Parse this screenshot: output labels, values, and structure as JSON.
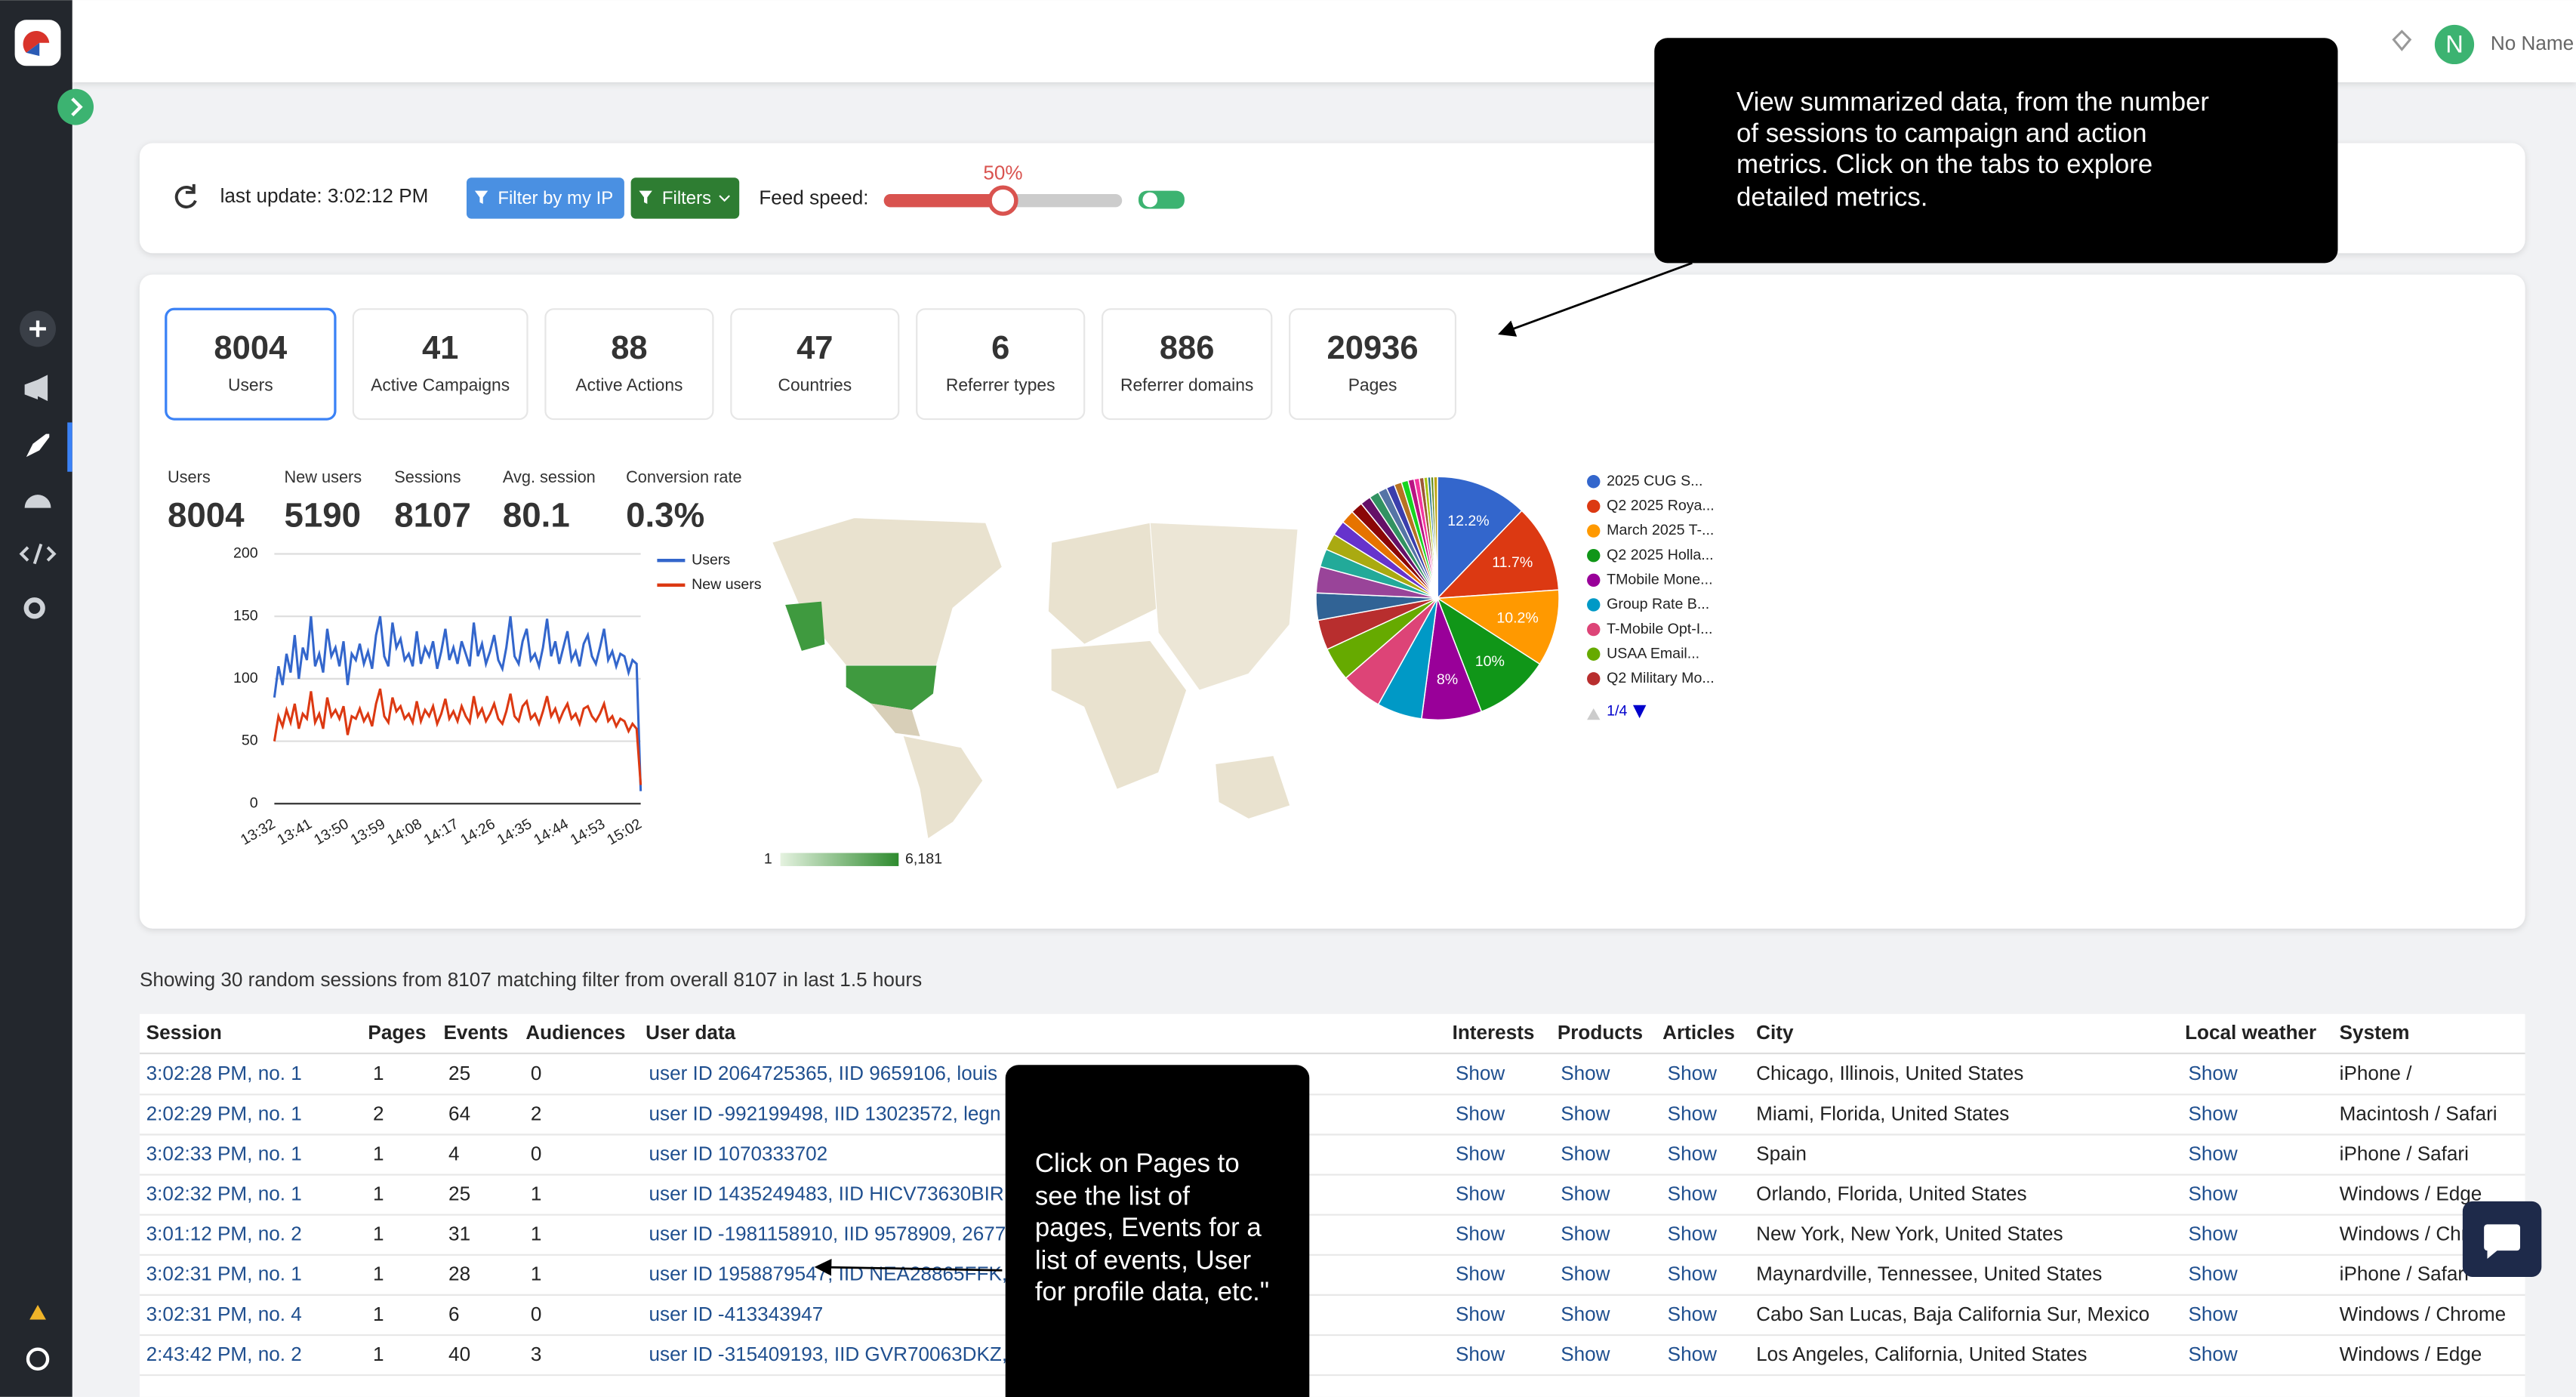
{
  "header": {
    "avatar": "N",
    "user_name": "No Name"
  },
  "toolbar": {
    "last_update": "last update: 3:02:12 PM",
    "filter_ip": "Filter by my IP",
    "filters": "Filters",
    "feed_speed_label": "Feed speed:",
    "feed_speed": {
      "value": 50,
      "label": "50%"
    }
  },
  "stats": [
    {
      "value": 8004,
      "label": "Users"
    },
    {
      "value": 41,
      "label": "Active Campaigns"
    },
    {
      "value": 88,
      "label": "Active Actions"
    },
    {
      "value": 47,
      "label": "Countries"
    },
    {
      "value": 6,
      "label": "Referrer types"
    },
    {
      "value": 886,
      "label": "Referrer domains"
    },
    {
      "value": 20936,
      "label": "Pages"
    }
  ],
  "metrics": [
    {
      "label": "Users",
      "value": 8004
    },
    {
      "label": "New users",
      "value": 5190
    },
    {
      "label": "Sessions",
      "value": 8107
    },
    {
      "label": "Avg. session",
      "value": 80.1
    },
    {
      "label": "Conversion rate",
      "value": "0.3%"
    }
  ],
  "chart_data": [
    {
      "type": "line",
      "categories": [
        "13:32",
        null,
        null,
        null,
        null,
        null,
        null,
        null,
        null,
        "13:41",
        null,
        null,
        null,
        null,
        null,
        null,
        null,
        null,
        "13:50",
        null,
        null,
        null,
        null,
        null,
        null,
        null,
        null,
        "13:59",
        null,
        null,
        null,
        null,
        null,
        null,
        null,
        null,
        "14:08",
        null,
        null,
        null,
        null,
        null,
        null,
        null,
        null,
        "14:17",
        null,
        null,
        null,
        null,
        null,
        null,
        null,
        null,
        "14:26",
        null,
        null,
        null,
        null,
        null,
        null,
        null,
        null,
        "14:35",
        null,
        null,
        null,
        null,
        null,
        null,
        null,
        null,
        "14:44",
        null,
        null,
        null,
        null,
        null,
        null,
        null,
        null,
        "14:53",
        null,
        null,
        null,
        null,
        null,
        null,
        null,
        null,
        "15:02"
      ],
      "series": [
        {
          "name": "Users",
          "color": "#3366cc",
          "values": [
            85,
            110,
            95,
            120,
            105,
            135,
            100,
            125,
            115,
            150,
            110,
            120,
            105,
            140,
            118,
            125,
            110,
            130,
            95,
            120,
            115,
            128,
            112,
            122,
            108,
            135,
            150,
            118,
            110,
            145,
            125,
            132,
            115,
            120,
            110,
            138,
            112,
            125,
            118,
            130,
            108,
            122,
            140,
            115,
            125,
            112,
            130,
            120,
            110,
            145,
            118,
            128,
            112,
            122,
            135,
            115,
            108,
            125,
            150,
            118,
            112,
            130,
            140,
            115,
            120,
            110,
            125,
            148,
            118,
            130,
            112,
            125,
            138,
            115,
            122,
            110,
            128,
            135,
            118,
            112,
            125,
            140,
            115,
            122,
            110,
            120,
            118,
            105,
            115,
            112,
            10
          ]
        },
        {
          "name": "New users",
          "color": "#dc3912",
          "values": [
            50,
            70,
            62,
            75,
            65,
            80,
            60,
            72,
            68,
            90,
            65,
            72,
            60,
            85,
            70,
            75,
            68,
            78,
            55,
            70,
            68,
            76,
            66,
            72,
            62,
            80,
            92,
            70,
            65,
            85,
            74,
            78,
            68,
            72,
            65,
            82,
            66,
            75,
            70,
            78,
            64,
            72,
            84,
            68,
            74,
            66,
            78,
            70,
            65,
            86,
            70,
            76,
            66,
            72,
            80,
            68,
            64,
            74,
            88,
            70,
            66,
            78,
            82,
            68,
            72,
            64,
            74,
            86,
            70,
            76,
            66,
            74,
            80,
            68,
            72,
            64,
            76,
            78,
            70,
            66,
            72,
            80,
            66,
            70,
            62,
            68,
            66,
            58,
            64,
            60,
            15
          ]
        }
      ],
      "ylim": [
        0,
        200
      ],
      "yticks": [
        0,
        50,
        100,
        150,
        200
      ],
      "grid": true
    },
    {
      "type": "pie",
      "categories": [
        "2025 CUG S...",
        "Q2 2025 Roya...",
        "March 2025 T-...",
        "Q2 2025 Holla...",
        "TMobile Mone...",
        "Group Rate B...",
        "T-Mobile Opt-I...",
        "USAA Email...",
        "Q2 Military Mo...",
        null,
        null,
        null,
        null,
        null,
        null,
        null,
        null,
        null,
        null,
        null,
        null,
        null,
        null,
        null,
        null,
        null,
        null,
        null,
        null
      ],
      "values": [
        12.2,
        11.7,
        10.2,
        10,
        8,
        6,
        5.5,
        4.5,
        4,
        3.6,
        3.5,
        2.4,
        2.2,
        2,
        1.8,
        1.6,
        1.4,
        1.3,
        1.2,
        1.1,
        1,
        0.9,
        0.8,
        0.7,
        0.6,
        0.5,
        0.4,
        0.4,
        0.5
      ],
      "value_labels": [
        "12.2%",
        "11.7%",
        "10.2%",
        "10%",
        "8%",
        null,
        null,
        null,
        null,
        null,
        null,
        null,
        null,
        null,
        null,
        null,
        null,
        null,
        null,
        null,
        null,
        null,
        null,
        null,
        null,
        null,
        null,
        null,
        null
      ],
      "colors": [
        "#3366cc",
        "#dc3912",
        "#ff9900",
        "#109618",
        "#990099",
        "#0099c6",
        "#dd4477",
        "#66aa00",
        "#b82e2e",
        "#316395",
        "#994499",
        "#22aa99",
        "#aaaa11",
        "#6633cc",
        "#e67300",
        "#8b0707",
        "#651067",
        "#329262",
        "#5574a6",
        "#3b3eac",
        "#b77322",
        "#16d620",
        "#b91383",
        "#f4359e",
        "#9c5935",
        "#a9c413",
        "#2a778d",
        "#668d1c",
        "#bea413"
      ],
      "legend_page": "1/4"
    }
  ],
  "map": {
    "legend_min": "1",
    "legend_max": "6,181"
  },
  "table": {
    "caption": "Showing 30 random sessions from 8107 matching filter from overall 8107 in last 1.5 hours",
    "columns": [
      "Session",
      "Pages",
      "Events",
      "Audiences",
      "User data",
      "Interests",
      "Products",
      "Articles",
      "City",
      "Local weather",
      "System"
    ],
    "rows": [
      [
        "3:02:28 PM, no. 1",
        "1",
        "25",
        "0",
        "user ID 2064725365, IID 9659106, louis",
        "Show",
        "Show",
        "Show",
        "Chicago, Illinois, United States",
        "Show",
        "iPhone /"
      ],
      [
        "2:02:29 PM, no. 1",
        "2",
        "64",
        "2",
        "user ID -992199498, IID 13023572, legn",
        "Show",
        "Show",
        "Show",
        "Miami, Florida, United States",
        "Show",
        "Macintosh / Safari"
      ],
      [
        "3:02:33 PM, no. 1",
        "1",
        "4",
        "0",
        "user ID 1070333702",
        "Show",
        "Show",
        "Show",
        "Spain",
        "Show",
        "iPhone / Safari"
      ],
      [
        "3:02:32 PM, no. 1",
        "1",
        "25",
        "1",
        "user ID 1435249483, IID HICV73630BIR,",
        "Show",
        "Show",
        "Show",
        "Orlando, Florida, United States",
        "Show",
        "Windows / Edge"
      ],
      [
        "3:01:12 PM, no. 2",
        "1",
        "31",
        "1",
        "user ID -1981158910, IID 9578909, 2677",
        "Show",
        "Show",
        "Show",
        "New York, New York, United States",
        "Show",
        "Windows / Chrome"
      ],
      [
        "3:02:31 PM, no. 1",
        "1",
        "28",
        "1",
        "user ID 1958879547, IID NEA28865FFK,",
        "Show",
        "Show",
        "Show",
        "Maynardville, Tennessee, United States",
        "Show",
        "iPhone / Safari"
      ],
      [
        "3:02:31 PM, no. 4",
        "1",
        "6",
        "0",
        "user ID -413343947",
        "Show",
        "Show",
        "Show",
        "Cabo San Lucas, Baja California Sur, Mexico",
        "Show",
        "Windows / Chrome"
      ],
      [
        "2:43:42 PM, no. 2",
        "1",
        "40",
        "3",
        "user ID -315409193, IID GVR70063DKZ,",
        "Show",
        "Show",
        "Show",
        "Los Angeles, California, United States",
        "Show",
        "Windows / Edge"
      ]
    ]
  },
  "tooltips": [
    {
      "lines": [
        "View summarized data, from the number",
        "of sessions to campaign and action",
        "metrics. Click on the tabs to explore",
        "detailed metrics."
      ]
    },
    {
      "lines": [
        "Click on Pages to",
        "see the list of",
        "pages, Events for a",
        "list of events, User",
        "for profile data, etc.\""
      ]
    }
  ]
}
